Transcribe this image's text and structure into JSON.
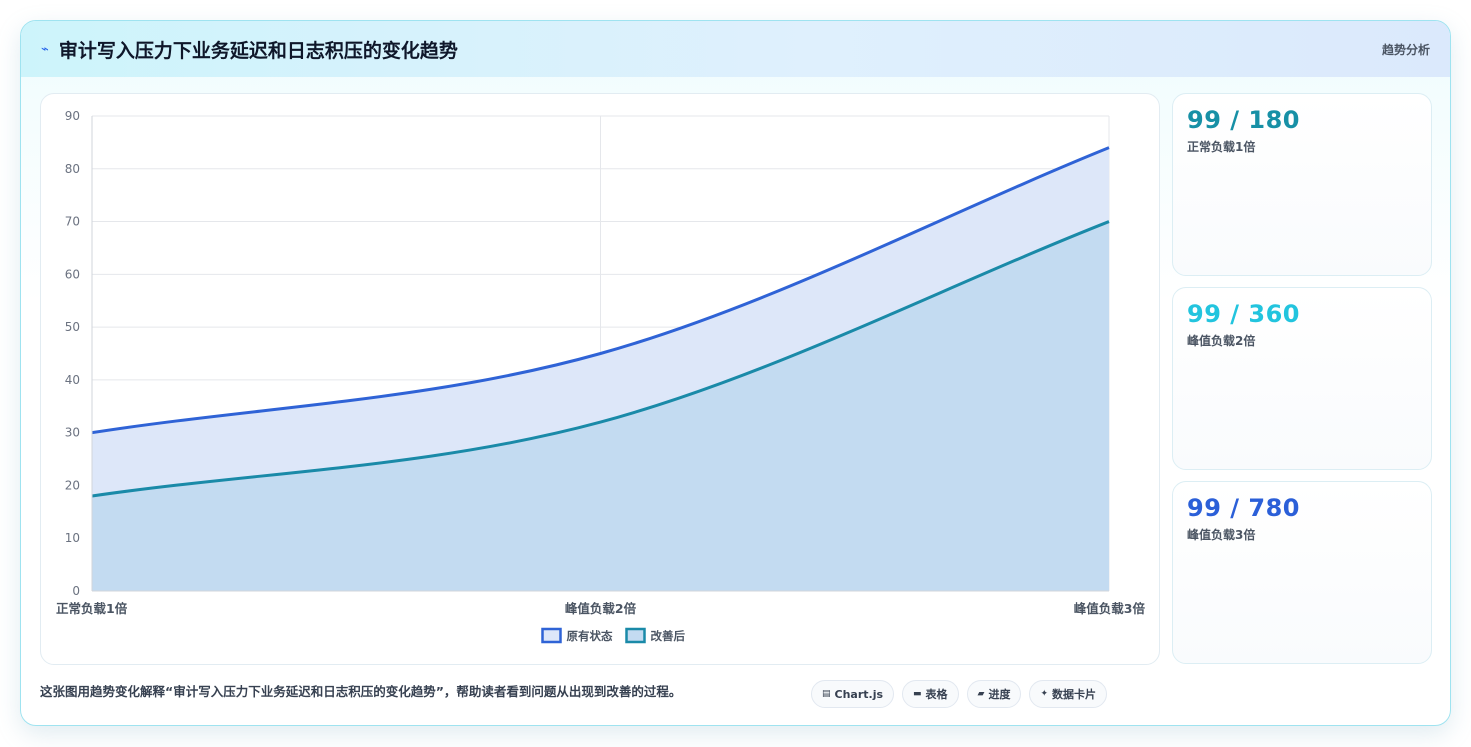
{
  "header": {
    "icon": "lightning-icon",
    "title": "审计写入压力下业务延迟和日志积压的变化趋势",
    "tag": "趋势分析"
  },
  "chart_data": {
    "type": "area",
    "categories": [
      "正常负载1倍",
      "峰值负载2倍",
      "峰值负载3倍"
    ],
    "series": [
      {
        "name": "原有状态",
        "values": [
          30,
          45,
          84
        ],
        "color": "#2f63d6",
        "fill": "#dde7f9"
      },
      {
        "name": "改善后",
        "values": [
          18,
          32,
          70
        ],
        "color": "#1a8aa8",
        "fill": "#c3dbf1"
      }
    ],
    "ylim": [
      0,
      90
    ],
    "yticks": [
      0,
      10,
      20,
      30,
      40,
      50,
      60,
      70,
      80,
      90
    ],
    "grid": true,
    "legend": "bottom",
    "xlabel": "",
    "ylabel": ""
  },
  "stats": [
    {
      "value": "99 / 180",
      "label": "正常负载1倍",
      "color": "#1790a6"
    },
    {
      "value": "99 / 360",
      "label": "峰值负载2倍",
      "color": "#22c4de"
    },
    {
      "value": "99 / 780",
      "label": "峰值负载3倍",
      "color": "#2b5fd8"
    }
  ],
  "caption": "这张图用趋势变化解释“审计写入压力下业务延迟和日志积压的变化趋势”，帮助读者看到问题从出现到改善的过程。",
  "pills": [
    {
      "icon": "chart-icon",
      "glyph": "▤",
      "label": "Chart.js"
    },
    {
      "icon": "table-icon",
      "glyph": "▬",
      "label": "表格"
    },
    {
      "icon": "progress-icon",
      "glyph": "▰",
      "label": "进度"
    },
    {
      "icon": "sparkle-icon",
      "glyph": "✦",
      "label": "数据卡片"
    }
  ]
}
